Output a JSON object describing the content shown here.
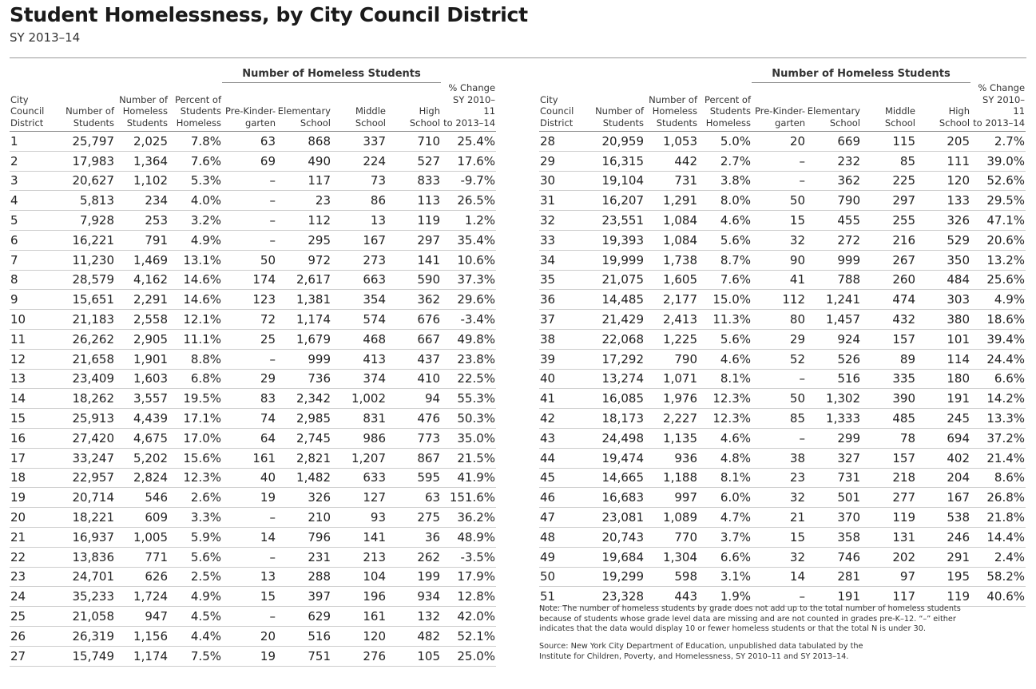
{
  "header": {
    "title": "Student Homelessness, by City Council District",
    "subtitle": "SY 2013–14"
  },
  "table": {
    "group_header": "Number of Homeless Students",
    "columns": [
      [
        "City",
        "Council",
        "District"
      ],
      [
        "Number of",
        "Students"
      ],
      [
        "Number of",
        "Homeless",
        "Students"
      ],
      [
        "Percent of",
        "Students",
        "Homeless"
      ],
      [
        "Pre-Kinder-",
        "garten"
      ],
      [
        "Elementary",
        "School"
      ],
      [
        "Middle",
        "School"
      ],
      [
        "High",
        "School"
      ],
      [
        "% Change",
        "SY 2010–11",
        "to 2013–14"
      ]
    ],
    "panels": [
      [
        [
          "1",
          "25,797",
          "2,025",
          "7.8%",
          "63",
          "868",
          "337",
          "710",
          "25.4%"
        ],
        [
          "2",
          "17,983",
          "1,364",
          "7.6%",
          "69",
          "490",
          "224",
          "527",
          "17.6%"
        ],
        [
          "3",
          "20,627",
          "1,102",
          "5.3%",
          "–",
          "117",
          "73",
          "833",
          "-9.7%"
        ],
        [
          "4",
          "5,813",
          "234",
          "4.0%",
          "–",
          "23",
          "86",
          "113",
          "26.5%"
        ],
        [
          "5",
          "7,928",
          "253",
          "3.2%",
          "–",
          "112",
          "13",
          "119",
          "1.2%"
        ],
        [
          "6",
          "16,221",
          "791",
          "4.9%",
          "–",
          "295",
          "167",
          "297",
          "35.4%"
        ],
        [
          "7",
          "11,230",
          "1,469",
          "13.1%",
          "50",
          "972",
          "273",
          "141",
          "10.6%"
        ],
        [
          "8",
          "28,579",
          "4,162",
          "14.6%",
          "174",
          "2,617",
          "663",
          "590",
          "37.3%"
        ],
        [
          "9",
          "15,651",
          "2,291",
          "14.6%",
          "123",
          "1,381",
          "354",
          "362",
          "29.6%"
        ],
        [
          "10",
          "21,183",
          "2,558",
          "12.1%",
          "72",
          "1,174",
          "574",
          "676",
          "-3.4%"
        ],
        [
          "11",
          "26,262",
          "2,905",
          "11.1%",
          "25",
          "1,679",
          "468",
          "667",
          "49.8%"
        ],
        [
          "12",
          "21,658",
          "1,901",
          "8.8%",
          "–",
          "999",
          "413",
          "437",
          "23.8%"
        ],
        [
          "13",
          "23,409",
          "1,603",
          "6.8%",
          "29",
          "736",
          "374",
          "410",
          "22.5%"
        ],
        [
          "14",
          "18,262",
          "3,557",
          "19.5%",
          "83",
          "2,342",
          "1,002",
          "94",
          "55.3%"
        ],
        [
          "15",
          "25,913",
          "4,439",
          "17.1%",
          "74",
          "2,985",
          "831",
          "476",
          "50.3%"
        ],
        [
          "16",
          "27,420",
          "4,675",
          "17.0%",
          "64",
          "2,745",
          "986",
          "773",
          "35.0%"
        ],
        [
          "17",
          "33,247",
          "5,202",
          "15.6%",
          "161",
          "2,821",
          "1,207",
          "867",
          "21.5%"
        ],
        [
          "18",
          "22,957",
          "2,824",
          "12.3%",
          "40",
          "1,482",
          "633",
          "595",
          "41.9%"
        ],
        [
          "19",
          "20,714",
          "546",
          "2.6%",
          "19",
          "326",
          "127",
          "63",
          "151.6%"
        ],
        [
          "20",
          "18,221",
          "609",
          "3.3%",
          "–",
          "210",
          "93",
          "275",
          "36.2%"
        ],
        [
          "21",
          "16,937",
          "1,005",
          "5.9%",
          "14",
          "796",
          "141",
          "36",
          "48.9%"
        ],
        [
          "22",
          "13,836",
          "771",
          "5.6%",
          "–",
          "231",
          "213",
          "262",
          "-3.5%"
        ],
        [
          "23",
          "24,701",
          "626",
          "2.5%",
          "13",
          "288",
          "104",
          "199",
          "17.9%"
        ],
        [
          "24",
          "35,233",
          "1,724",
          "4.9%",
          "15",
          "397",
          "196",
          "934",
          "12.8%"
        ],
        [
          "25",
          "21,058",
          "947",
          "4.5%",
          "–",
          "629",
          "161",
          "132",
          "42.0%"
        ],
        [
          "26",
          "26,319",
          "1,156",
          "4.4%",
          "20",
          "516",
          "120",
          "482",
          "52.1%"
        ],
        [
          "27",
          "15,749",
          "1,174",
          "7.5%",
          "19",
          "751",
          "276",
          "105",
          "25.0%"
        ]
      ],
      [
        [
          "28",
          "20,959",
          "1,053",
          "5.0%",
          "20",
          "669",
          "115",
          "205",
          "2.7%"
        ],
        [
          "29",
          "16,315",
          "442",
          "2.7%",
          "–",
          "232",
          "85",
          "111",
          "39.0%"
        ],
        [
          "30",
          "19,104",
          "731",
          "3.8%",
          "–",
          "362",
          "225",
          "120",
          "52.6%"
        ],
        [
          "31",
          "16,207",
          "1,291",
          "8.0%",
          "50",
          "790",
          "297",
          "133",
          "29.5%"
        ],
        [
          "32",
          "23,551",
          "1,084",
          "4.6%",
          "15",
          "455",
          "255",
          "326",
          "47.1%"
        ],
        [
          "33",
          "19,393",
          "1,084",
          "5.6%",
          "32",
          "272",
          "216",
          "529",
          "20.6%"
        ],
        [
          "34",
          "19,999",
          "1,738",
          "8.7%",
          "90",
          "999",
          "267",
          "350",
          "13.2%"
        ],
        [
          "35",
          "21,075",
          "1,605",
          "7.6%",
          "41",
          "788",
          "260",
          "484",
          "25.6%"
        ],
        [
          "36",
          "14,485",
          "2,177",
          "15.0%",
          "112",
          "1,241",
          "474",
          "303",
          "4.9%"
        ],
        [
          "37",
          "21,429",
          "2,413",
          "11.3%",
          "80",
          "1,457",
          "432",
          "380",
          "18.6%"
        ],
        [
          "38",
          "22,068",
          "1,225",
          "5.6%",
          "29",
          "924",
          "157",
          "101",
          "39.4%"
        ],
        [
          "39",
          "17,292",
          "790",
          "4.6%",
          "52",
          "526",
          "89",
          "114",
          "24.4%"
        ],
        [
          "40",
          "13,274",
          "1,071",
          "8.1%",
          "–",
          "516",
          "335",
          "180",
          "6.6%"
        ],
        [
          "41",
          "16,085",
          "1,976",
          "12.3%",
          "50",
          "1,302",
          "390",
          "191",
          "14.2%"
        ],
        [
          "42",
          "18,173",
          "2,227",
          "12.3%",
          "85",
          "1,333",
          "485",
          "245",
          "13.3%"
        ],
        [
          "43",
          "24,498",
          "1,135",
          "4.6%",
          "–",
          "299",
          "78",
          "694",
          "37.2%"
        ],
        [
          "44",
          "19,474",
          "936",
          "4.8%",
          "38",
          "327",
          "157",
          "402",
          "21.4%"
        ],
        [
          "45",
          "14,665",
          "1,188",
          "8.1%",
          "23",
          "731",
          "218",
          "204",
          "8.6%"
        ],
        [
          "46",
          "16,683",
          "997",
          "6.0%",
          "32",
          "501",
          "277",
          "167",
          "26.8%"
        ],
        [
          "47",
          "23,081",
          "1,089",
          "4.7%",
          "21",
          "370",
          "119",
          "538",
          "21.8%"
        ],
        [
          "48",
          "20,743",
          "770",
          "3.7%",
          "15",
          "358",
          "131",
          "246",
          "14.4%"
        ],
        [
          "49",
          "19,684",
          "1,304",
          "6.6%",
          "32",
          "746",
          "202",
          "291",
          "2.4%"
        ],
        [
          "50",
          "19,299",
          "598",
          "3.1%",
          "14",
          "281",
          "97",
          "195",
          "58.2%"
        ],
        [
          "51",
          "23,328",
          "443",
          "1.9%",
          "–",
          "191",
          "117",
          "119",
          "40.6%"
        ]
      ]
    ]
  },
  "note": "Note: The number of homeless students by grade does not add up to the total number of homeless students because of students whose grade level data are missing and are not counted in grades pre-K–12. “–” either indicates that the data would display 10 or fewer homeless students or that the total N is under 30.",
  "source": "Source: New York City Department of Education, unpublished data tabulated by the Institute for Children, Poverty, and Homelessness, SY 2010–11 and SY 2013–14."
}
